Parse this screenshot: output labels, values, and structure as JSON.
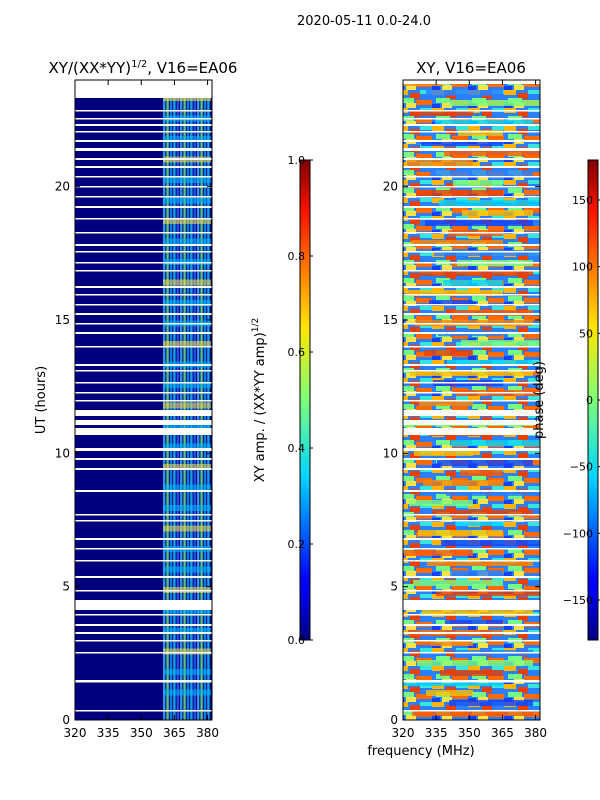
{
  "suptitle": "2020-05-11 0.0-24.0",
  "chart_data": [
    {
      "type": "heatmap",
      "title_main": "XY/(XX*YY)",
      "title_sup": "1/2",
      "title_rest": ", V16=EA06",
      "ylabel": "UT (hours)",
      "xlim": [
        320,
        382
      ],
      "ylim": [
        0,
        24
      ],
      "xticks": [
        320,
        335,
        350,
        365,
        380
      ],
      "yticks": [
        0,
        5,
        10,
        15,
        20
      ],
      "colorbar": {
        "label_main": "XY amp. / (XX*YY amp)",
        "label_sup": "1/2",
        "range": [
          0.0,
          1.0
        ],
        "ticks": [
          "0.0",
          "0.2",
          "0.4",
          "0.6",
          "0.8",
          "1.0"
        ]
      }
    },
    {
      "type": "heatmap",
      "title": "XY, V16=EA06",
      "xlim": [
        320,
        382
      ],
      "ylim": [
        0,
        24
      ],
      "xticks": [
        320,
        335,
        350,
        365,
        380
      ],
      "yticks": [
        0,
        5,
        10,
        15,
        20
      ],
      "colorbar": {
        "label": "phase (deg)",
        "range": [
          -180,
          180
        ],
        "ticks": [
          "−150",
          "−100",
          "−50",
          "0",
          "50",
          "100",
          "150"
        ]
      }
    }
  ],
  "shared_xlabel": "frequency (MHz)"
}
